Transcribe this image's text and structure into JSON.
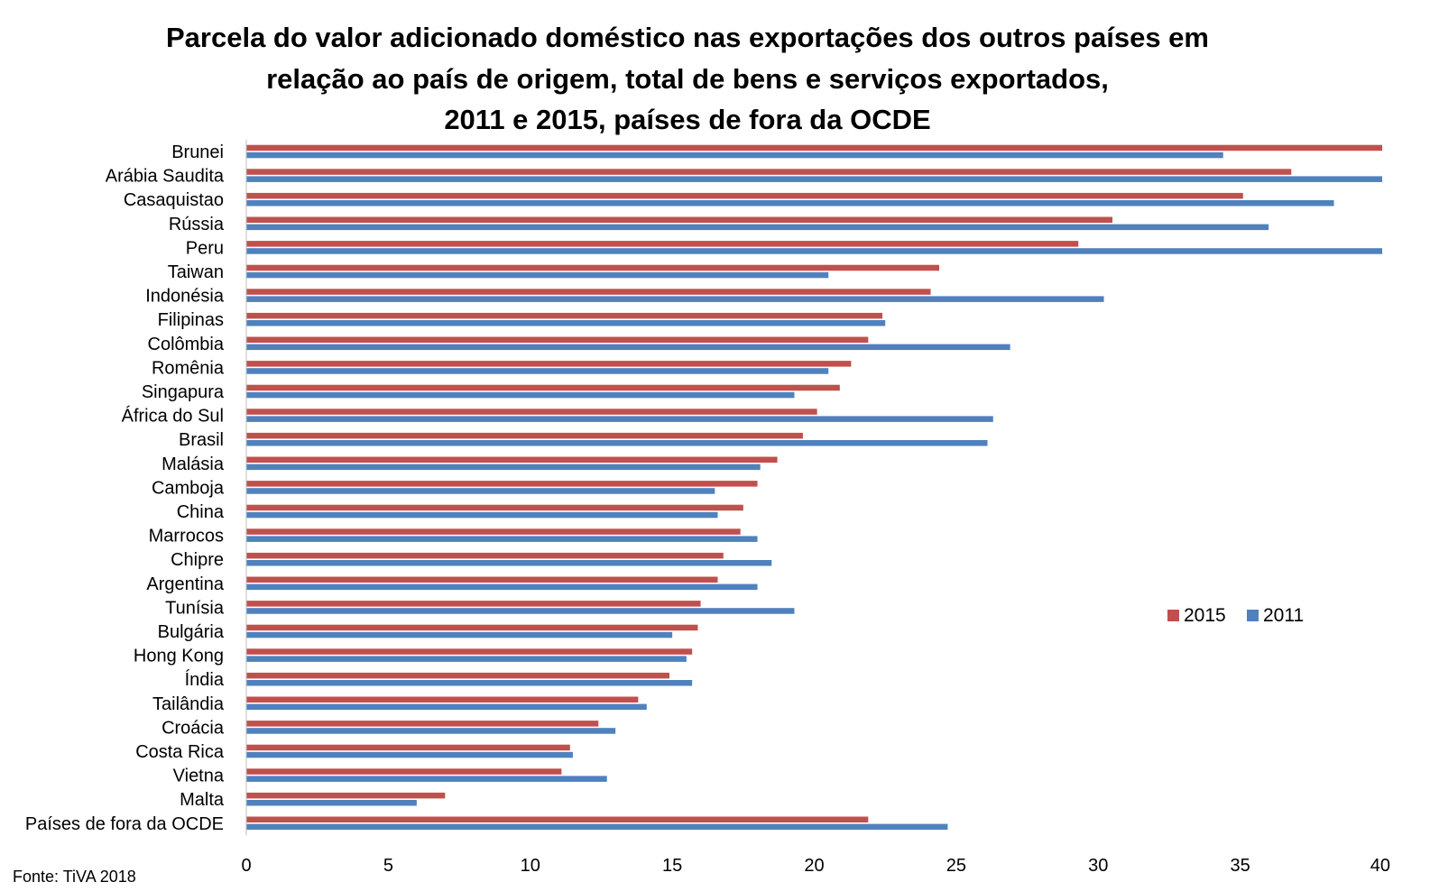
{
  "chart_data": {
    "type": "bar",
    "orientation": "horizontal",
    "title_lines": [
      "Parcela do valor adicionado doméstico nas exportações dos outros países em",
      "relação ao país de origem, total de bens e serviços exportados,",
      "2011 e 2015, países de fora da OCDE"
    ],
    "categories": [
      "Brunei",
      "Arábia Saudita",
      "Casaquistao",
      "Rússia",
      "Peru",
      "Taiwan",
      "Indonésia",
      "Filipinas",
      "Colômbia",
      "Romênia",
      "Singapura",
      "África do Sul",
      "Brasil",
      "Malásia",
      "Camboja",
      "China",
      "Marrocos",
      "Chipre",
      "Argentina",
      "Tunísia",
      "Bulgária",
      "Hong Kong",
      "Índia",
      "Tailândia",
      "Croácia",
      "Costa Rica",
      "Vietna",
      "Malta",
      "Países de fora da OCDE"
    ],
    "series": [
      {
        "name": "2015",
        "color": "#c0504d",
        "values": [
          40.0,
          36.8,
          35.1,
          30.5,
          29.3,
          24.4,
          24.1,
          22.4,
          21.9,
          21.3,
          20.9,
          20.1,
          19.6,
          18.7,
          18.0,
          17.5,
          17.4,
          16.8,
          16.6,
          16.0,
          15.9,
          15.7,
          14.9,
          13.8,
          12.4,
          11.4,
          11.1,
          7.0,
          21.9
        ]
      },
      {
        "name": "2011",
        "color": "#4f81bd",
        "values": [
          34.4,
          40.0,
          38.3,
          36.0,
          40.0,
          20.5,
          30.2,
          22.5,
          26.9,
          20.5,
          19.3,
          26.3,
          26.1,
          18.1,
          16.5,
          16.6,
          18.0,
          18.5,
          18.0,
          19.3,
          15.0,
          15.5,
          15.7,
          14.1,
          13.0,
          11.5,
          12.7,
          6.0,
          24.7
        ]
      }
    ],
    "xlim": [
      0,
      40
    ],
    "x_ticks": [
      0,
      5,
      10,
      15,
      20,
      25,
      30,
      35,
      40
    ],
    "legend_position": "right",
    "grid": false,
    "source": "Fonte: TiVA 2018"
  }
}
